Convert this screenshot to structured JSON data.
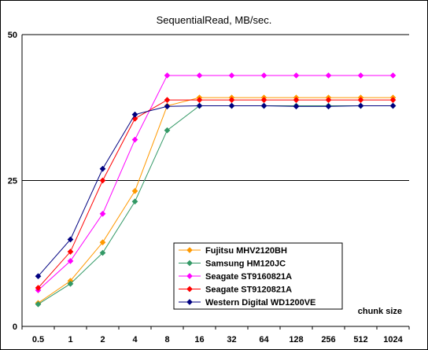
{
  "chart_data": {
    "type": "line",
    "title": "SequentialRead, MB/sec.",
    "xlabel": "chunk size",
    "ylabel": "",
    "categories": [
      "0.5",
      "1",
      "2",
      "4",
      "8",
      "16",
      "32",
      "64",
      "128",
      "256",
      "512",
      "1024"
    ],
    "ylim": [
      0,
      50
    ],
    "yticks": [
      "0",
      "25",
      "50"
    ],
    "grid": "major-y",
    "legend_position": "bottom-right",
    "series": [
      {
        "name": "Fujitsu MHV2120BH",
        "color": "#ff9900",
        "marker": "diamond",
        "values": [
          4.0,
          7.8,
          14.4,
          23.2,
          37.8,
          39.2,
          39.2,
          39.2,
          39.2,
          39.2,
          39.2,
          39.2
        ]
      },
      {
        "name": "Samsung HM120JC",
        "color": "#339966",
        "marker": "diamond",
        "values": [
          3.8,
          7.3,
          12.6,
          21.4,
          33.6,
          37.8,
          37.8,
          37.8,
          37.8,
          37.8,
          37.8,
          37.8
        ]
      },
      {
        "name": "Seagate ST9160821A",
        "color": "#ff00ff",
        "marker": "diamond",
        "values": [
          6.2,
          11.2,
          19.3,
          32.0,
          43.0,
          43.0,
          43.0,
          43.0,
          43.0,
          43.0,
          43.0,
          43.0
        ]
      },
      {
        "name": "Seagate ST9120821A",
        "color": "#ff0000",
        "marker": "diamond",
        "values": [
          6.6,
          12.8,
          25.0,
          35.6,
          38.8,
          38.8,
          38.8,
          38.8,
          38.8,
          38.8,
          38.8,
          38.8
        ]
      },
      {
        "name": "Western Digital WD1200VE",
        "color": "#000080",
        "marker": "diamond",
        "values": [
          8.6,
          14.9,
          27.0,
          36.3,
          37.7,
          37.8,
          37.8,
          37.8,
          37.7,
          37.7,
          37.8,
          37.8
        ]
      }
    ]
  }
}
